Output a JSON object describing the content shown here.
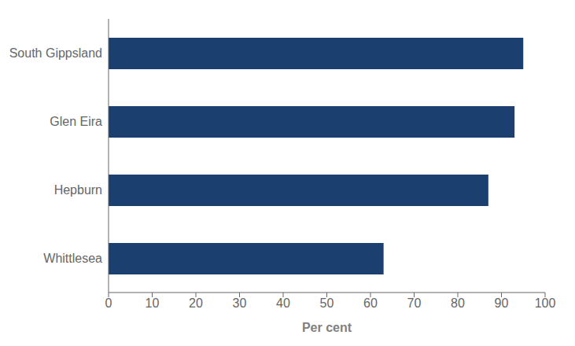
{
  "chart_data": {
    "type": "bar",
    "orientation": "horizontal",
    "categories": [
      "Whittlesea",
      "Hepburn",
      "Glen Eira",
      "South Gippsland"
    ],
    "values": [
      63,
      87,
      93,
      95
    ],
    "color": "#1b3f6e",
    "xlabel": "Per cent",
    "xlim": [
      0,
      100
    ],
    "xticks": [
      0,
      10,
      20,
      30,
      40,
      50,
      60,
      70,
      80,
      90,
      100
    ],
    "grid": false
  }
}
